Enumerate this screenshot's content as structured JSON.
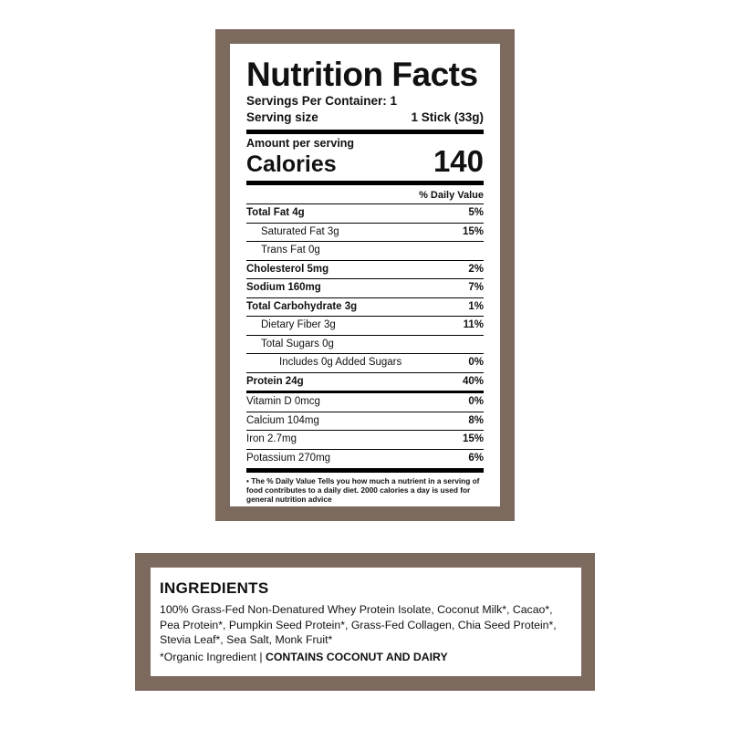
{
  "nutrition": {
    "title": "Nutrition Facts",
    "servings_per_container": "Servings Per Container: 1",
    "serving_size_label": "Serving size",
    "serving_size_value": "1 Stick (33g)",
    "amount_per_serving": "Amount per serving",
    "calories_label": "Calories",
    "calories_value": "140",
    "daily_value_header": "% Daily Value",
    "rows": [
      {
        "name": "Total Fat 4g",
        "pct": "5%"
      },
      {
        "name": "Saturated Fat 3g",
        "pct": "15%"
      },
      {
        "name": "Trans Fat 0g",
        "pct": ""
      },
      {
        "name": "Cholesterol 5mg",
        "pct": "2%"
      },
      {
        "name": "Sodium 160mg",
        "pct": "7%"
      },
      {
        "name": "Total Carbohydrate 3g",
        "pct": "1%"
      },
      {
        "name": "Dietary Fiber 3g",
        "pct": "11%"
      },
      {
        "name": "Total Sugars 0g",
        "pct": ""
      },
      {
        "name": "Includes 0g Added Sugars",
        "pct": "0%"
      },
      {
        "name": "Protein 24g",
        "pct": "40%"
      }
    ],
    "vitamins": [
      {
        "name": "Vitamin D 0mcg",
        "pct": "0%"
      },
      {
        "name": "Calcium 104mg",
        "pct": "8%"
      },
      {
        "name": "Iron 2.7mg",
        "pct": "15%"
      },
      {
        "name": "Potassium 270mg",
        "pct": "6%"
      }
    ],
    "footnote": "• The % Daily Value Tells you how much a nutrient in a serving of food contributes to a daily diet. 2000 calories a day is used for general nutrition advice"
  },
  "ingredients": {
    "heading": "INGREDIENTS",
    "text": "100% Grass-Fed Non-Denatured Whey Protein Isolate, Coconut Milk*, Cacao*, Pea Protein*, Pumpkin Seed Protein*, Grass-Fed Collagen, Chia Seed Protein*, Stevia Leaf*, Sea Salt, Monk Fruit*",
    "organic_note": "*Organic Ingredient | ",
    "allergen": "CONTAINS COCONUT AND DAIRY"
  },
  "colors": {
    "frame": "#7d6a5f"
  }
}
